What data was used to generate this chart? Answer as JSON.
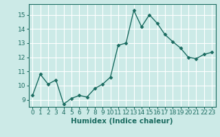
{
  "x": [
    0,
    1,
    2,
    3,
    4,
    5,
    6,
    7,
    8,
    9,
    10,
    11,
    12,
    13,
    14,
    15,
    16,
    17,
    18,
    19,
    20,
    21,
    22,
    23
  ],
  "y": [
    9.3,
    10.8,
    10.1,
    10.4,
    8.7,
    9.1,
    9.3,
    9.2,
    9.8,
    10.1,
    10.6,
    12.85,
    13.0,
    15.3,
    14.15,
    15.0,
    14.4,
    13.6,
    13.1,
    12.65,
    12.0,
    11.9,
    12.2,
    12.35
  ],
  "title": "",
  "xlabel": "Humidex (Indice chaleur)",
  "ylabel": "",
  "xlim": [
    -0.5,
    23.5
  ],
  "ylim": [
    8.5,
    15.75
  ],
  "yticks": [
    9,
    10,
    11,
    12,
    13,
    14,
    15
  ],
  "xticks": [
    0,
    1,
    2,
    3,
    4,
    5,
    6,
    7,
    8,
    9,
    10,
    11,
    12,
    13,
    14,
    15,
    16,
    17,
    18,
    19,
    20,
    21,
    22,
    23
  ],
  "line_color": "#1a6b60",
  "marker": "D",
  "marker_size": 2.5,
  "bg_color": "#cceae7",
  "grid_color": "#ffffff",
  "tick_label_fontsize": 6.5,
  "xlabel_fontsize": 7.5,
  "linewidth": 1.0
}
